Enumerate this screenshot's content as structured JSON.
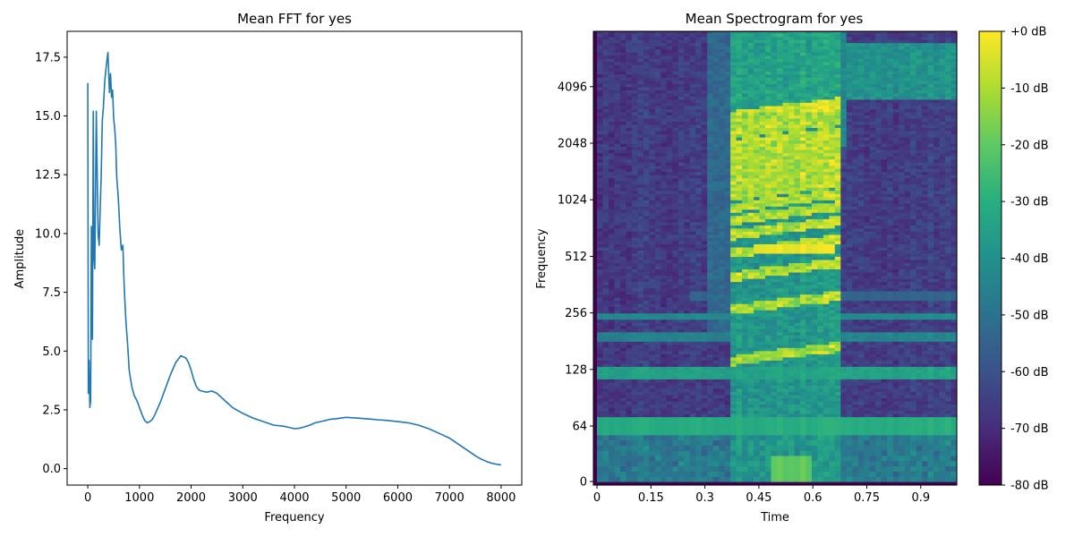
{
  "chart_data": [
    {
      "type": "line",
      "title": "Mean FFT for yes",
      "xlabel": "Frequency",
      "ylabel": "Amplitude",
      "xlim": [
        -400,
        8400
      ],
      "ylim": [
        -0.7,
        18.6
      ],
      "xticks": [
        0,
        1000,
        2000,
        3000,
        4000,
        5000,
        6000,
        7000,
        8000
      ],
      "yticks": [
        0.0,
        2.5,
        5.0,
        7.5,
        10.0,
        12.5,
        15.0,
        17.5
      ],
      "xtick_labels": [
        "0",
        "1000",
        "2000",
        "3000",
        "4000",
        "5000",
        "6000",
        "7000",
        "8000"
      ],
      "ytick_labels": [
        "0.0",
        "2.5",
        "5.0",
        "7.5",
        "10.0",
        "12.5",
        "15.0",
        "17.5"
      ],
      "line_color": "#1f77b4",
      "series": [
        {
          "x": [
            0,
            10,
            25,
            40,
            55,
            70,
            90,
            105,
            120,
            135,
            150,
            165,
            180,
            200,
            220,
            240,
            260,
            280,
            300,
            330,
            360,
            390,
            420,
            440,
            460,
            480,
            500,
            520,
            540,
            560,
            590,
            620,
            650,
            680,
            700,
            720,
            740,
            760,
            780,
            800,
            850,
            900,
            950,
            1000,
            1050,
            1100,
            1150,
            1200,
            1250,
            1300,
            1400,
            1500,
            1600,
            1700,
            1800,
            1850,
            1900,
            1950,
            2000,
            2050,
            2100,
            2150,
            2200,
            2300,
            2400,
            2500,
            2600,
            2700,
            2800,
            3000,
            3200,
            3400,
            3600,
            3800,
            3900,
            4000,
            4100,
            4200,
            4300,
            4400,
            4500,
            4600,
            4700,
            4800,
            4900,
            5000,
            5200,
            5400,
            5500,
            5600,
            5800,
            6000,
            6200,
            6400,
            6600,
            6800,
            7000,
            7100,
            7200,
            7300,
            7400,
            7500,
            7600,
            7700,
            7800,
            7900,
            8000
          ],
          "y": [
            16.4,
            3.2,
            4.6,
            2.6,
            2.9,
            10.3,
            5.5,
            15.2,
            9.0,
            8.5,
            12.0,
            15.2,
            12.8,
            10.0,
            9.5,
            11.0,
            12.5,
            14.8,
            15.3,
            16.5,
            17.2,
            17.7,
            16.0,
            16.8,
            15.8,
            16.1,
            14.9,
            14.5,
            13.8,
            12.4,
            11.5,
            10.2,
            9.3,
            9.5,
            8.0,
            7.0,
            6.2,
            5.6,
            5.0,
            4.2,
            3.5,
            3.1,
            2.9,
            2.6,
            2.3,
            2.05,
            1.95,
            2.0,
            2.1,
            2.3,
            2.8,
            3.4,
            4.0,
            4.5,
            4.8,
            4.75,
            4.7,
            4.5,
            4.2,
            3.8,
            3.5,
            3.35,
            3.3,
            3.25,
            3.3,
            3.2,
            3.0,
            2.8,
            2.6,
            2.35,
            2.15,
            2.0,
            1.85,
            1.8,
            1.75,
            1.7,
            1.72,
            1.78,
            1.85,
            1.95,
            2.0,
            2.05,
            2.1,
            2.12,
            2.15,
            2.18,
            2.15,
            2.12,
            2.1,
            2.08,
            2.05,
            2.0,
            1.95,
            1.85,
            1.7,
            1.5,
            1.3,
            1.15,
            1.0,
            0.85,
            0.7,
            0.55,
            0.42,
            0.32,
            0.24,
            0.19,
            0.16
          ]
        }
      ]
    },
    {
      "type": "heatmap",
      "title": "Mean Spectrogram for yes",
      "xlabel": "Time",
      "ylabel": "Frequency",
      "xlim": [
        -0.01,
        1.0
      ],
      "xticks": [
        0,
        0.15,
        0.3,
        0.45,
        0.6,
        0.75,
        0.9
      ],
      "xtick_labels": [
        "0",
        "0.15",
        "0.3",
        "0.45",
        "0.6",
        "0.75",
        "0.9"
      ],
      "yticks": [
        0,
        64,
        128,
        256,
        512,
        1024,
        2048,
        4096
      ],
      "ytick_labels": [
        "0",
        "64",
        "128",
        "256",
        "512",
        "1024",
        "2048",
        "4096"
      ],
      "y_scale": "symlog (base 2)",
      "ylim": [
        0,
        8000
      ],
      "colormap": "viridis",
      "colorbar": {
        "range_db": [
          -80,
          0
        ],
        "ticks": [
          0,
          -10,
          -20,
          -30,
          -40,
          -50,
          -60,
          -70,
          -80
        ],
        "tick_labels": [
          "+0 dB",
          "-10 dB",
          "-20 dB",
          "-30 dB",
          "-40 dB",
          "-50 dB",
          "-60 dB",
          "-70 dB",
          "-80 dB"
        ]
      }
    }
  ]
}
